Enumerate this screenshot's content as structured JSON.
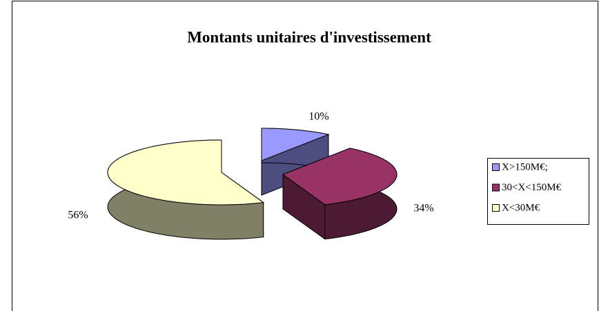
{
  "chart_data": {
    "type": "pie",
    "title": "Montants unitaires d'investissement",
    "categories": [
      "X>150M€;",
      "30<X<150M€",
      "X<30M€"
    ],
    "values": [
      10,
      34,
      56
    ],
    "value_labels": [
      "10%",
      "34%",
      "56%"
    ],
    "colors": [
      "#9999FF",
      "#993366",
      "#FFFFCC"
    ],
    "legend": "right",
    "exploded": true,
    "3d": true
  }
}
